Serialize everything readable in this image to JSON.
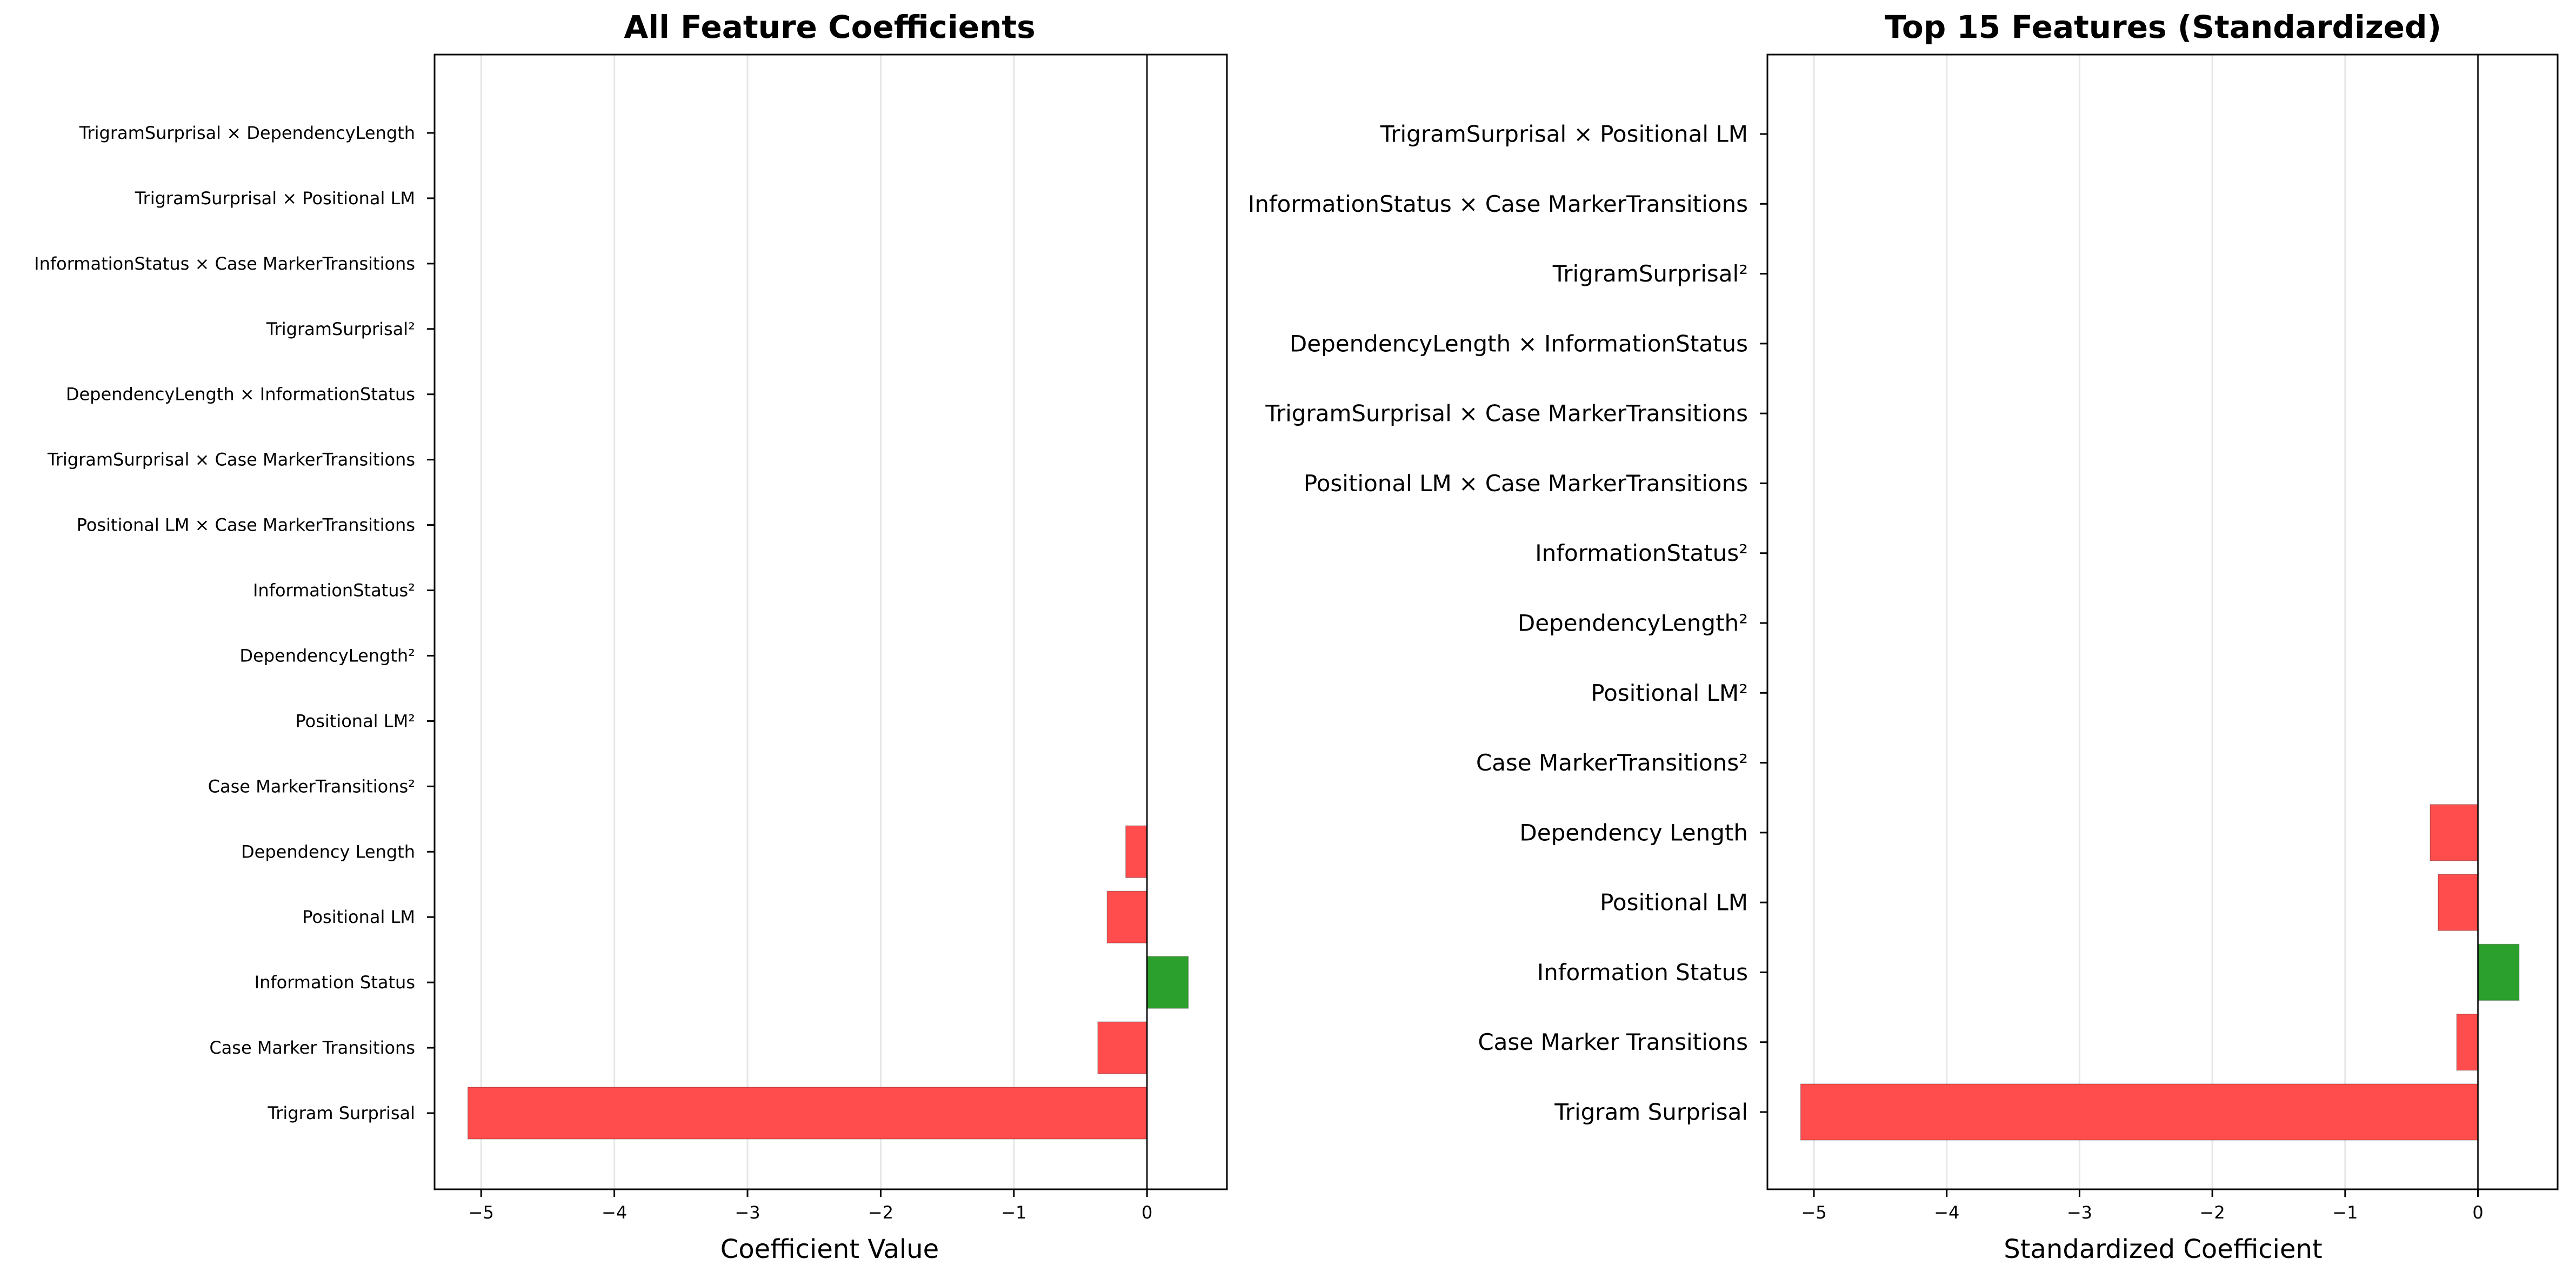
{
  "chart_data": [
    {
      "type": "bar",
      "orientation": "horizontal",
      "title": "All Feature Coefficients",
      "xlabel": "Coefficient Value",
      "ylabel": "",
      "xlim": [
        -5.35,
        0.6
      ],
      "xticks": [
        -5,
        -4,
        -3,
        -2,
        -1,
        0
      ],
      "xtick_labels": [
        "−5",
        "−4",
        "−3",
        "−2",
        "−1",
        "0"
      ],
      "grid_x": true,
      "categories": [
        "Trigram Surprisal",
        "Case Marker Transitions",
        "Information Status",
        "Positional LM",
        "Dependency Length",
        "Case MarkerTransitions²",
        "Positional LM²",
        "DependencyLength²",
        "InformationStatus²",
        "Positional LM × Case MarkerTransitions",
        "TrigramSurprisal × Case MarkerTransitions",
        "DependencyLength × InformationStatus",
        "TrigramSurprisal²",
        "InformationStatus × Case MarkerTransitions",
        "TrigramSurprisal × Positional LM",
        "TrigramSurprisal × DependencyLength"
      ],
      "values": [
        -5.1,
        -0.37,
        0.31,
        -0.3,
        -0.16,
        0,
        0,
        0,
        0,
        0,
        0,
        0,
        0,
        0,
        0,
        0
      ],
      "positive_color": "#2ca02c",
      "negative_color": "#ff4d4d"
    },
    {
      "type": "bar",
      "orientation": "horizontal",
      "title": "Top 15 Features (Standardized)",
      "xlabel": "Standardized Coefficient",
      "ylabel": "",
      "xlim": [
        -5.35,
        0.6
      ],
      "xticks": [
        -5,
        -4,
        -3,
        -2,
        -1,
        0
      ],
      "xtick_labels": [
        "−5",
        "−4",
        "−3",
        "−2",
        "−1",
        "0"
      ],
      "grid_x": true,
      "categories": [
        "Trigram Surprisal",
        "Case Marker Transitions",
        "Information Status",
        "Positional LM",
        "Dependency Length",
        "Case MarkerTransitions²",
        "Positional LM²",
        "DependencyLength²",
        "InformationStatus²",
        "Positional LM × Case MarkerTransitions",
        "TrigramSurprisal × Case MarkerTransitions",
        "DependencyLength × InformationStatus",
        "TrigramSurprisal²",
        "InformationStatus × Case MarkerTransitions",
        "TrigramSurprisal × Positional LM"
      ],
      "values": [
        -5.1,
        -0.16,
        0.31,
        -0.3,
        -0.36,
        0,
        0,
        0,
        0,
        0,
        0,
        0,
        0,
        0,
        0
      ],
      "positive_color": "#2ca02c",
      "negative_color": "#ff4d4d"
    }
  ]
}
